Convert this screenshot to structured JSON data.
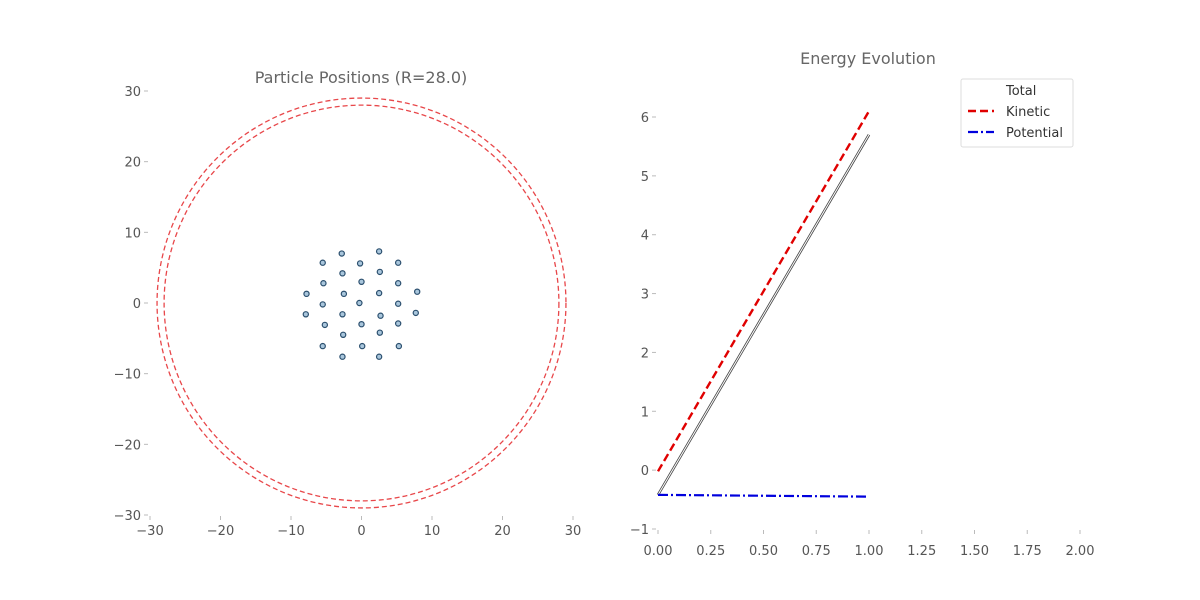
{
  "colors": {
    "boundary": "#e8474a",
    "particle_fill": "#a9c6dc",
    "particle_edge": "#2b4f6e",
    "total": "#999999",
    "kinetic": "#e00000",
    "potential": "#0000dd",
    "tick": "#555555"
  },
  "chart_data": [
    {
      "type": "scatter",
      "title": "Particle Positions (R=28.0)",
      "xlim": [
        -30,
        30
      ],
      "ylim": [
        -30,
        30
      ],
      "xticks": [
        -30,
        -20,
        -10,
        0,
        10,
        20,
        30
      ],
      "yticks": [
        -30,
        -20,
        -10,
        0,
        10,
        20,
        30
      ],
      "xtick_labels": [
        "−30",
        "−20",
        "−10",
        "0",
        "10",
        "20",
        "30"
      ],
      "ytick_labels": [
        "−30",
        "−20",
        "−10",
        "0",
        "10",
        "20",
        "30"
      ],
      "grid": false,
      "boundary_circles": [
        {
          "radius": 28.0,
          "style": "dashed"
        },
        {
          "radius": 29.0,
          "style": "dashed"
        }
      ],
      "points": [
        {
          "x": -2.8,
          "y": 7.0
        },
        {
          "x": 2.5,
          "y": 7.3
        },
        {
          "x": -5.5,
          "y": 5.7
        },
        {
          "x": -0.2,
          "y": 5.6
        },
        {
          "x": 5.2,
          "y": 5.7
        },
        {
          "x": -2.7,
          "y": 4.2
        },
        {
          "x": 2.6,
          "y": 4.4
        },
        {
          "x": -5.4,
          "y": 2.8
        },
        {
          "x": 0.0,
          "y": 3.0
        },
        {
          "x": 5.2,
          "y": 2.8
        },
        {
          "x": -7.8,
          "y": 1.3
        },
        {
          "x": -2.5,
          "y": 1.3
        },
        {
          "x": 2.5,
          "y": 1.4
        },
        {
          "x": 7.9,
          "y": 1.6
        },
        {
          "x": -5.5,
          "y": -0.2
        },
        {
          "x": -0.3,
          "y": 0.0
        },
        {
          "x": 5.2,
          "y": -0.1
        },
        {
          "x": -7.9,
          "y": -1.6
        },
        {
          "x": -2.7,
          "y": -1.6
        },
        {
          "x": 2.7,
          "y": -1.8
        },
        {
          "x": 7.7,
          "y": -1.4
        },
        {
          "x": -5.2,
          "y": -3.1
        },
        {
          "x": 0.0,
          "y": -3.0
        },
        {
          "x": 5.2,
          "y": -2.9
        },
        {
          "x": -2.6,
          "y": -4.5
        },
        {
          "x": 2.6,
          "y": -4.2
        },
        {
          "x": -5.5,
          "y": -6.1
        },
        {
          "x": 0.1,
          "y": -6.1
        },
        {
          "x": 5.3,
          "y": -6.1
        },
        {
          "x": -2.7,
          "y": -7.6
        },
        {
          "x": 2.5,
          "y": -7.6
        }
      ]
    },
    {
      "type": "line",
      "title": "Energy Evolution",
      "xlim": [
        0,
        2
      ],
      "ylim": [
        -1,
        6.6
      ],
      "xticks": [
        0,
        0.25,
        0.5,
        0.75,
        1.0,
        1.25,
        1.5,
        1.75,
        2.0
      ],
      "xtick_labels": [
        "0.00",
        "0.25",
        "0.50",
        "0.75",
        "1.00",
        "1.25",
        "1.50",
        "1.75",
        "2.00"
      ],
      "yticks": [
        -1,
        0,
        1,
        2,
        3,
        4,
        5,
        6
      ],
      "ytick_labels": [
        "−1",
        "0",
        "1",
        "2",
        "3",
        "4",
        "5",
        "6"
      ],
      "grid": false,
      "legend_position": "top-right",
      "series": [
        {
          "name": "Total",
          "style": "solid",
          "x": [
            0,
            1.0
          ],
          "y": [
            -0.42,
            5.7
          ]
        },
        {
          "name": "Kinetic",
          "style": "dashed",
          "x": [
            0,
            1.0
          ],
          "y": [
            -0.02,
            6.1
          ]
        },
        {
          "name": "Potential",
          "style": "dashdot",
          "x": [
            0,
            1.0
          ],
          "y": [
            -0.42,
            -0.45
          ]
        }
      ]
    }
  ]
}
